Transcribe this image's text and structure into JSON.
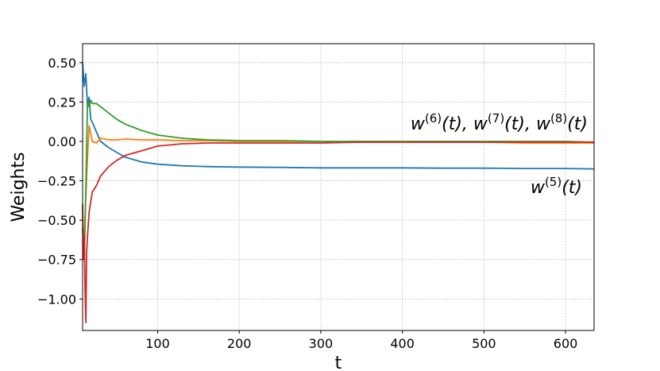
{
  "chart_data": {
    "type": "line",
    "title": "",
    "xlabel": "t",
    "ylabel": "Weights",
    "xlim": [
      8,
      635
    ],
    "ylim": [
      -1.2,
      0.62
    ],
    "xticks": [
      100,
      200,
      300,
      400,
      500,
      600
    ],
    "xtick_labels": [
      "100",
      "200",
      "300",
      "400",
      "500",
      "600"
    ],
    "yticks": [
      0.5,
      0.25,
      0.0,
      -0.25,
      -0.5,
      -0.75,
      -1.0
    ],
    "ytick_labels": [
      "0.50",
      "0.25",
      "0.00",
      "−0.25",
      "−0.50",
      "−0.75",
      "−1.00"
    ],
    "grid": true,
    "colors": {
      "blue": "#1f77b4",
      "orange": "#ff7f0e",
      "green": "#2ca02c",
      "red": "#d62728"
    },
    "annotations": [
      {
        "parts": [
          "w",
          "(6)",
          "(t), w",
          "(7)",
          "(t), w",
          "(8)",
          "(t)"
        ]
      },
      {
        "parts": [
          "w",
          "(5)",
          "(t)"
        ]
      }
    ],
    "series": [
      {
        "color": "#1f77b4",
        "x": [
          8,
          10,
          12,
          14,
          16,
          18,
          20,
          25,
          30,
          40,
          50,
          60,
          80,
          100,
          130,
          160,
          200,
          250,
          300,
          350,
          400,
          450,
          500,
          550,
          600,
          635
        ],
        "y": [
          0.5,
          0.35,
          0.43,
          0.22,
          0.28,
          0.14,
          0.12,
          0.06,
          0.0,
          -0.04,
          -0.07,
          -0.1,
          -0.13,
          -0.145,
          -0.155,
          -0.16,
          -0.163,
          -0.165,
          -0.168,
          -0.168,
          -0.168,
          -0.17,
          -0.17,
          -0.172,
          -0.172,
          -0.175
        ]
      },
      {
        "color": "#ff7f0e",
        "x": [
          8,
          10,
          12,
          14,
          16,
          20,
          25,
          30,
          40,
          50,
          60,
          80,
          100,
          130,
          160,
          200,
          250,
          300,
          350,
          400,
          450,
          500,
          550,
          600,
          635
        ],
        "y": [
          -0.6,
          -0.6,
          -0.35,
          -0.1,
          0.1,
          0.0,
          -0.01,
          0.02,
          0.01,
          0.01,
          0.015,
          0.01,
          0.01,
          0.005,
          0.005,
          0.0,
          0.0,
          0.0,
          -0.005,
          -0.005,
          -0.005,
          -0.005,
          -0.01,
          -0.01,
          -0.01
        ]
      },
      {
        "color": "#2ca02c",
        "x": [
          8,
          10,
          12,
          14,
          16,
          18,
          20,
          25,
          30,
          40,
          50,
          60,
          80,
          100,
          130,
          160,
          200,
          250,
          300,
          350,
          400,
          450,
          500,
          550,
          600,
          635
        ],
        "y": [
          -0.55,
          -0.75,
          -0.3,
          0.25,
          0.22,
          0.26,
          0.24,
          0.24,
          0.22,
          0.18,
          0.14,
          0.11,
          0.07,
          0.04,
          0.02,
          0.01,
          0.005,
          0.005,
          0.0,
          0.0,
          0.0,
          0.0,
          0.0,
          0.0,
          0.0,
          -0.005
        ]
      },
      {
        "color": "#d62728",
        "x": [
          8,
          9,
          10,
          11,
          12,
          13,
          14,
          16,
          18,
          20,
          25,
          30,
          40,
          50,
          60,
          80,
          100,
          130,
          160,
          200,
          250,
          300,
          350,
          400,
          450,
          500,
          550,
          600,
          635
        ],
        "y": [
          -0.4,
          -0.75,
          -0.6,
          -0.95,
          -1.15,
          -0.7,
          -0.6,
          -0.45,
          -0.38,
          -0.32,
          -0.28,
          -0.22,
          -0.16,
          -0.12,
          -0.09,
          -0.06,
          -0.03,
          -0.015,
          -0.01,
          -0.01,
          -0.01,
          -0.01,
          -0.005,
          -0.005,
          -0.005,
          -0.005,
          -0.005,
          -0.005,
          -0.005
        ]
      }
    ]
  }
}
